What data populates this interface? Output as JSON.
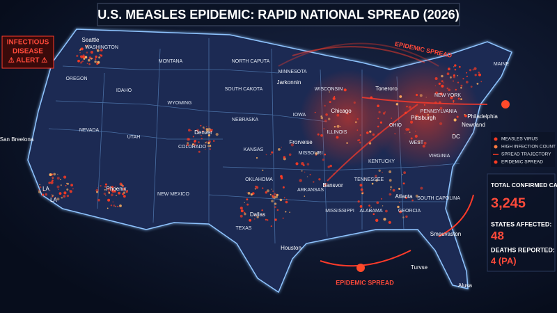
{
  "title": "U.S. MEASLES EPIDEMIC: RAPID NATIONAL SPREAD (2026)",
  "alert": [
    "INFECTIOUS",
    "DISEASE",
    "⚠ ALERT ⚠"
  ],
  "states": [
    "WASHINGTON",
    "MONTANA",
    "NORTH CAPUTA",
    "MINNESOTA",
    "OREGON",
    "IDAHO",
    "WYOMING",
    "SOUTH CAKOTA",
    "WISCONSIN",
    "IOWA",
    "NEBRASKA",
    "NEVADA",
    "UTAH",
    "COLORADO",
    "KANSAS",
    "MISSOURI",
    "ILLINOIS",
    "OHIO",
    "WEST",
    "NEW YORK",
    "PENNSYLVANIA",
    "KENTUCKY",
    "VIRGINIA",
    "TENNESSEE",
    "OKLAHOMA",
    "NEW MEXICO",
    "ARKANSAS",
    "MISSISSIPPI",
    "ALABAMA",
    "GEORCIA",
    "SOUTH CAPOLINA",
    "TEXAS",
    "MAINE"
  ],
  "cities": [
    "Seattle",
    "Jarkonnin",
    "Chicago",
    "Pittsburgh",
    "Philadelphia",
    "Newrland",
    "Denver",
    "Frorveise",
    "San Breelona",
    "Phoenix",
    "LA",
    "LA",
    "Dallas",
    "Houston",
    "Bansvor",
    "Atlanta",
    "Smeuvaston",
    "Turvse",
    "Alusa",
    "Toneroro",
    "DC"
  ],
  "annotations": [
    "EPIDEMIC SPREAD",
    "EPIDEMIC SPREAD"
  ],
  "legend": [
    "MEASLES VIRUS",
    "HIGH INFECTION COUNT",
    "SPREAD TRAJECTORY",
    "EPIDEMIC SPREAD"
  ],
  "stats": {
    "cases_label": "TOTAL CONFIRMED CASES (U.S.):",
    "cases": "3,245",
    "states_label": "STATES AFFECTED:",
    "states": "48",
    "deaths_label": "DEATHS REPORTED:",
    "deaths": "4 (PA)"
  }
}
